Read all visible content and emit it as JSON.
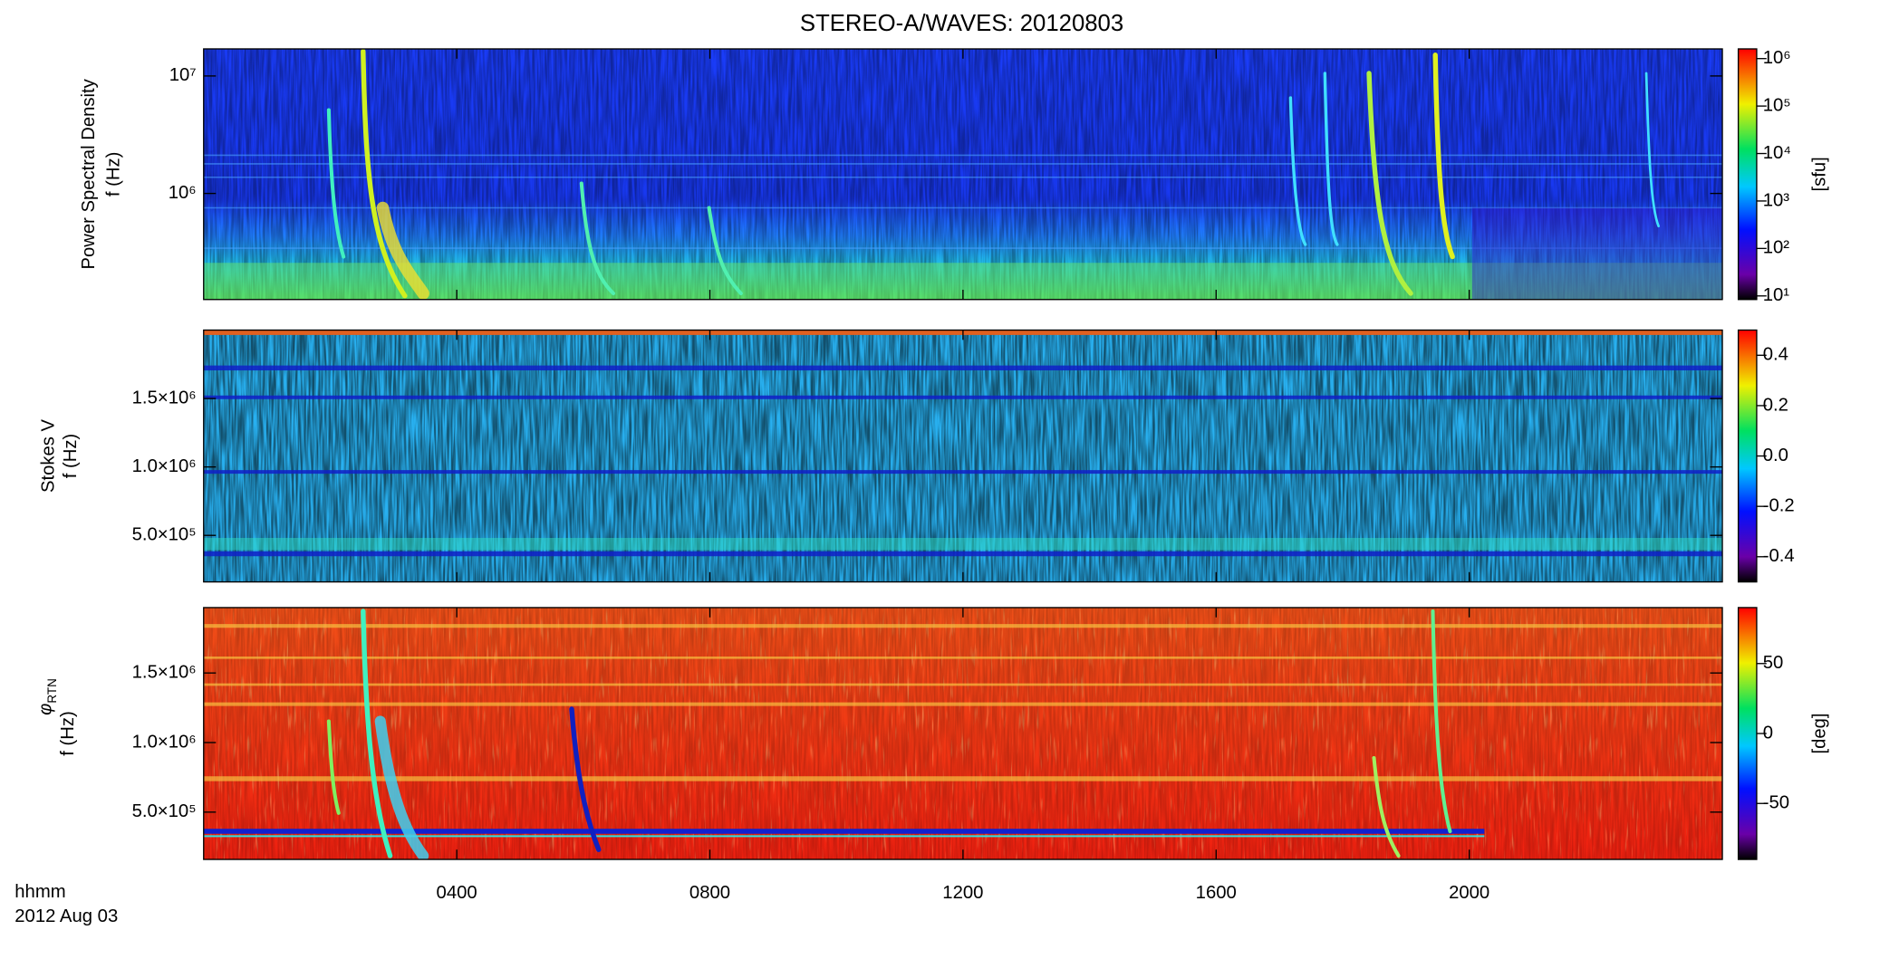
{
  "chart_data": [
    {
      "type": "spectrogram",
      "title": "STEREO-A/WAVES: 20120803",
      "ylabel": [
        "Power Spectral Density",
        "f (Hz)"
      ],
      "ylog": true,
      "ylim": [
        125000,
        17000000
      ],
      "yticks": [
        {
          "value": 1000000,
          "label": "10⁶"
        },
        {
          "value": 10000000,
          "label": "10⁷"
        }
      ],
      "colorbar": {
        "label": "[sfu]",
        "log": true,
        "lim": [
          8.4,
          1600000
        ],
        "ticks": [
          {
            "value": 10,
            "label": "10¹"
          },
          {
            "value": 100,
            "label": "10²"
          },
          {
            "value": 1000,
            "label": "10³"
          },
          {
            "value": 10000,
            "label": "10⁴"
          },
          {
            "value": 100000,
            "label": "10⁵"
          },
          {
            "value": 1000000,
            "label": "10⁶"
          }
        ]
      }
    },
    {
      "type": "spectrogram",
      "ylabel": [
        "Stokes V",
        "f (Hz)"
      ],
      "ylim": [
        160000,
        2000000
      ],
      "yticks": [
        {
          "value": 500000,
          "label": "5.0×10⁵"
        },
        {
          "value": 1000000,
          "label": "1.0×10⁶"
        },
        {
          "value": 1500000,
          "label": "1.5×10⁶"
        }
      ],
      "colorbar": {
        "lim": [
          -0.5,
          0.5
        ],
        "ticks": [
          -0.4,
          -0.2,
          {
            "value": 0,
            "label": "0.0"
          },
          0.2,
          0.4
        ]
      }
    },
    {
      "type": "spectrogram",
      "ylabel_symbol": "φ",
      "ylabel_subscript": "RTN",
      "ylabel": [
        "f (Hz)"
      ],
      "ylim": [
        160000,
        1970000
      ],
      "yticks": [
        {
          "value": 500000,
          "label": "5.0×10⁵"
        },
        {
          "value": 1000000,
          "label": "1.0×10⁶"
        },
        {
          "value": 1500000,
          "label": "1.5×10⁶"
        }
      ],
      "colorbar": {
        "label": "[deg]",
        "lim": [
          -90,
          90
        ],
        "ticks": [
          -50,
          0,
          50
        ]
      },
      "xlim": [
        0,
        24
      ],
      "xticks": [
        {
          "value": 4,
          "label": "0400"
        },
        {
          "value": 8,
          "label": "0800"
        },
        {
          "value": 12,
          "label": "1200"
        },
        {
          "value": 16,
          "label": "1600"
        },
        {
          "value": 20,
          "label": "2000"
        }
      ],
      "xlabel": "hhmm",
      "date": "2012 Aug 03"
    }
  ]
}
